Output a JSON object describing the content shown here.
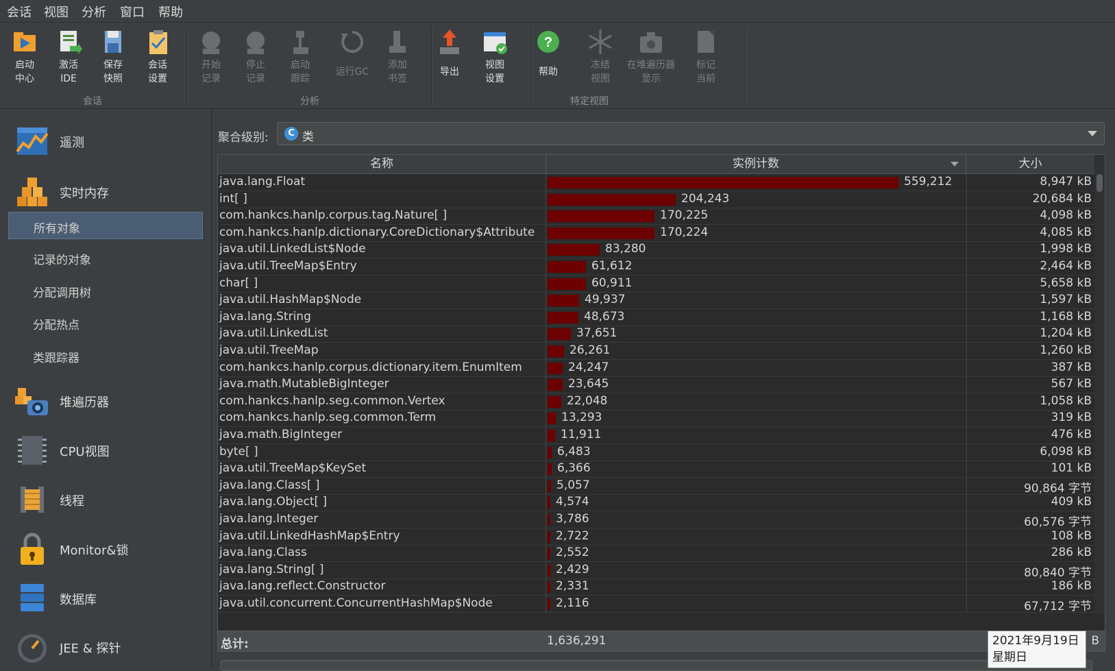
{
  "menu": [
    "会话",
    "视图",
    "分析",
    "窗口",
    "帮助"
  ],
  "toolbar": {
    "groups": [
      {
        "label": "会话"
      },
      {
        "label": "分析"
      },
      {
        "label": "特定视图"
      }
    ],
    "buttons": [
      {
        "label1": "启动",
        "label2": "中心",
        "icon": "start-center-icon",
        "enabled": true
      },
      {
        "label1": "激活",
        "label2": "IDE",
        "icon": "activate-ide-icon",
        "enabled": true
      },
      {
        "label1": "保存",
        "label2": "快照",
        "icon": "save-snapshot-icon",
        "enabled": true
      },
      {
        "label1": "会话",
        "label2": "设置",
        "icon": "session-settings-icon",
        "enabled": true
      },
      {
        "label1": "开始",
        "label2": "记录",
        "icon": "start-recording-icon",
        "enabled": false
      },
      {
        "label1": "停止",
        "label2": "记录",
        "icon": "stop-recording-icon",
        "enabled": false
      },
      {
        "label1": "启动",
        "label2": "跟踪",
        "icon": "start-tracking-icon",
        "enabled": false
      },
      {
        "label1": "运行GC",
        "label2": "",
        "icon": "run-gc-icon",
        "enabled": false
      },
      {
        "label1": "添加",
        "label2": "书签",
        "icon": "add-bookmark-icon",
        "enabled": false
      },
      {
        "label1": "导出",
        "label2": "",
        "icon": "export-icon",
        "enabled": true
      },
      {
        "label1": "视图",
        "label2": "设置",
        "icon": "view-settings-icon",
        "enabled": true
      },
      {
        "label1": "帮助",
        "label2": "",
        "icon": "help-icon",
        "enabled": true
      },
      {
        "label1": "冻结",
        "label2": "视图",
        "icon": "freeze-view-icon",
        "enabled": false
      },
      {
        "label1": "在堆遍历器",
        "label2": "显示",
        "icon": "show-in-heap-walker-icon",
        "enabled": false
      },
      {
        "label1": "标记",
        "label2": "当前",
        "icon": "mark-current-icon",
        "enabled": false
      }
    ]
  },
  "sidebar": {
    "main": [
      {
        "label": "遥测",
        "icon": "telemetry-icon"
      },
      {
        "label": "实时内存",
        "icon": "live-memory-icon"
      },
      {
        "label": "堆遍历器",
        "icon": "heap-walker-icon"
      },
      {
        "label": "CPU视图",
        "icon": "cpu-view-icon"
      },
      {
        "label": "线程",
        "icon": "threads-icon"
      },
      {
        "label": "Monitor&锁",
        "icon": "monitor-lock-icon"
      },
      {
        "label": "数据库",
        "icon": "database-icon"
      },
      {
        "label": "JEE & 探针",
        "icon": "jee-probes-icon"
      }
    ],
    "sub": [
      {
        "label": "所有对象",
        "selected": true
      },
      {
        "label": "记录的对象",
        "selected": false
      },
      {
        "label": "分配调用树",
        "selected": false
      },
      {
        "label": "分配热点",
        "selected": false
      },
      {
        "label": "类跟踪器",
        "selected": false
      }
    ]
  },
  "aggregation": {
    "label": "聚合级别:",
    "value": "类",
    "icon": "class-c-icon"
  },
  "table": {
    "columns": [
      "名称",
      "实例计数",
      "大小"
    ],
    "max_count": 559212,
    "bar_color": "#6d0000",
    "rows": [
      {
        "name": "java.lang.Float",
        "count": 559212,
        "count_text": "559,212",
        "size": "8,947 kB"
      },
      {
        "name": "int[ ]",
        "count": 204243,
        "count_text": "204,243",
        "size": "20,684 kB"
      },
      {
        "name": "com.hankcs.hanlp.corpus.tag.Nature[ ]",
        "count": 170225,
        "count_text": "170,225",
        "size": "4,098 kB"
      },
      {
        "name": "com.hankcs.hanlp.dictionary.CoreDictionary$Attribute",
        "count": 170224,
        "count_text": "170,224",
        "size": "4,085 kB"
      },
      {
        "name": "java.util.LinkedList$Node",
        "count": 83280,
        "count_text": "83,280",
        "size": "1,998 kB"
      },
      {
        "name": "java.util.TreeMap$Entry",
        "count": 61612,
        "count_text": "61,612",
        "size": "2,464 kB"
      },
      {
        "name": "char[ ]",
        "count": 60911,
        "count_text": "60,911",
        "size": "5,658 kB"
      },
      {
        "name": "java.util.HashMap$Node",
        "count": 49937,
        "count_text": "49,937",
        "size": "1,597 kB"
      },
      {
        "name": "java.lang.String",
        "count": 48673,
        "count_text": "48,673",
        "size": "1,168 kB"
      },
      {
        "name": "java.util.LinkedList",
        "count": 37651,
        "count_text": "37,651",
        "size": "1,204 kB"
      },
      {
        "name": "java.util.TreeMap",
        "count": 26261,
        "count_text": "26,261",
        "size": "1,260 kB"
      },
      {
        "name": "com.hankcs.hanlp.corpus.dictionary.item.EnumItem",
        "count": 24247,
        "count_text": "24,247",
        "size": "387 kB"
      },
      {
        "name": "java.math.MutableBigInteger",
        "count": 23645,
        "count_text": "23,645",
        "size": "567 kB"
      },
      {
        "name": "com.hankcs.hanlp.seg.common.Vertex",
        "count": 22048,
        "count_text": "22,048",
        "size": "1,058 kB"
      },
      {
        "name": "com.hankcs.hanlp.seg.common.Term",
        "count": 13293,
        "count_text": "13,293",
        "size": "319 kB"
      },
      {
        "name": "java.math.BigInteger",
        "count": 11911,
        "count_text": "11,911",
        "size": "476 kB"
      },
      {
        "name": "byte[ ]",
        "count": 6483,
        "count_text": "6,483",
        "size": "6,098 kB"
      },
      {
        "name": "java.util.TreeMap$KeySet",
        "count": 6366,
        "count_text": "6,366",
        "size": "101 kB"
      },
      {
        "name": "java.lang.Class[ ]",
        "count": 5057,
        "count_text": "5,057",
        "size": "90,864 字节"
      },
      {
        "name": "java.lang.Object[ ]",
        "count": 4574,
        "count_text": "4,574",
        "size": "409 kB"
      },
      {
        "name": "java.lang.Integer",
        "count": 3786,
        "count_text": "3,786",
        "size": "60,576 字节"
      },
      {
        "name": "java.util.LinkedHashMap$Entry",
        "count": 2722,
        "count_text": "2,722",
        "size": "108 kB"
      },
      {
        "name": "java.lang.Class",
        "count": 2552,
        "count_text": "2,552",
        "size": "286 kB"
      },
      {
        "name": "java.lang.String[ ]",
        "count": 2429,
        "count_text": "2,429",
        "size": "80,840 字节"
      },
      {
        "name": "java.lang.reflect.Constructor",
        "count": 2331,
        "count_text": "2,331",
        "size": "186 kB"
      },
      {
        "name": "java.util.concurrent.ConcurrentHashMap$Node",
        "count": 2116,
        "count_text": "2,116",
        "size": "67,712 字节"
      }
    ],
    "totals": {
      "label": "总计:",
      "count": "1,636,291",
      "size": "B"
    }
  },
  "tooltip": {
    "line1": "2021年9月19日",
    "line2": "星期日"
  }
}
